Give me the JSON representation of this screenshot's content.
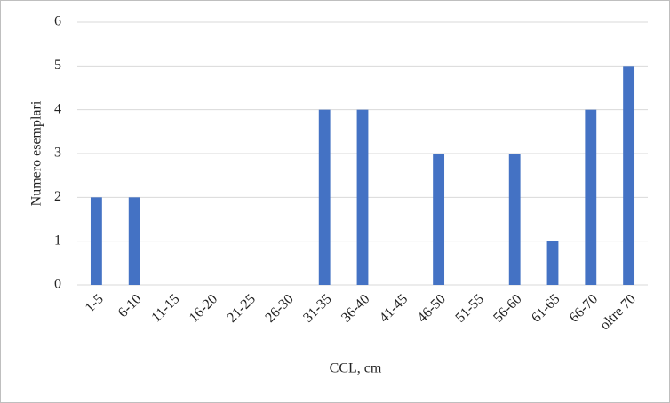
{
  "chart_data": {
    "type": "bar",
    "x_label": "CCL, cm",
    "y_label": "Numero esemplari",
    "categories": [
      "1-5",
      "6-10",
      "11-15",
      "16-20",
      "21-25",
      "26-30",
      "31-35",
      "36-40",
      "41-45",
      "46-50",
      "51-55",
      "56-60",
      "61-65",
      "66-70",
      "oltre 70"
    ],
    "values": [
      2,
      2,
      0,
      0,
      0,
      0,
      4,
      4,
      0,
      3,
      0,
      3,
      1,
      4,
      5
    ],
    "color": "#4472c4",
    "ylim": [
      0,
      6
    ],
    "yticks": [
      0,
      1,
      2,
      3,
      4,
      5,
      6
    ],
    "grid": true
  }
}
